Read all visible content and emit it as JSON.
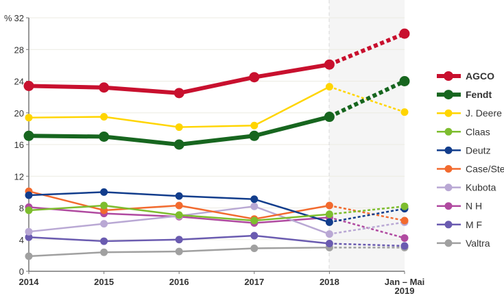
{
  "chart_data": {
    "type": "line",
    "ylabel": "%",
    "ylim": [
      0,
      32
    ],
    "yticks": [
      "0",
      "4",
      "8",
      "12",
      "16",
      "20",
      "24",
      "28",
      "32"
    ],
    "categories": [
      "2014",
      "2015",
      "2016",
      "2017",
      "2018",
      "Jan – Mai 2019"
    ],
    "category_labels": [
      [
        "2014"
      ],
      [
        "2015"
      ],
      [
        "2016"
      ],
      [
        "2017"
      ],
      [
        "2018"
      ],
      [
        "Jan – Mai",
        "2019"
      ]
    ],
    "forecast_region": "last segment dashed, shaded background",
    "grid": true,
    "legend_position": "right",
    "series": [
      {
        "name": "AGCO",
        "color": "#c8102e",
        "bold": true,
        "values": [
          23.4,
          23.2,
          22.5,
          24.5,
          26.1,
          30.0
        ]
      },
      {
        "name": "Fendt",
        "color": "#17661f",
        "bold": true,
        "values": [
          17.1,
          17.0,
          16.0,
          17.1,
          19.5,
          24.0
        ]
      },
      {
        "name": "J. Deere",
        "color": "#ffd500",
        "bold": false,
        "values": [
          19.4,
          19.5,
          18.2,
          18.4,
          23.3,
          20.1
        ]
      },
      {
        "name": "Claas",
        "color": "#7dbd2e",
        "bold": false,
        "values": [
          7.7,
          8.3,
          7.1,
          6.4,
          7.2,
          8.2
        ]
      },
      {
        "name": "Deutz",
        "color": "#123d8c",
        "bold": false,
        "values": [
          9.6,
          10.0,
          9.5,
          9.1,
          6.2,
          7.9
        ]
      },
      {
        "name": "Case/Ste",
        "color": "#f26a2e",
        "bold": false,
        "values": [
          10.1,
          7.7,
          8.3,
          6.6,
          8.3,
          6.4
        ]
      },
      {
        "name": "Kubota",
        "color": "#b9a8d4",
        "bold": false,
        "values": [
          5.0,
          6.0,
          7.0,
          8.2,
          4.7,
          6.2
        ]
      },
      {
        "name": "N H",
        "color": "#b04aa0",
        "bold": false,
        "values": [
          8.1,
          7.3,
          6.9,
          6.1,
          6.8,
          4.2
        ]
      },
      {
        "name": "M F",
        "color": "#6a5bb0",
        "bold": false,
        "values": [
          4.3,
          3.8,
          4.0,
          4.5,
          3.5,
          3.2
        ]
      },
      {
        "name": "Valtra",
        "color": "#a0a0a0",
        "bold": false,
        "values": [
          1.9,
          2.4,
          2.5,
          2.9,
          3.0,
          3.0
        ]
      }
    ]
  }
}
